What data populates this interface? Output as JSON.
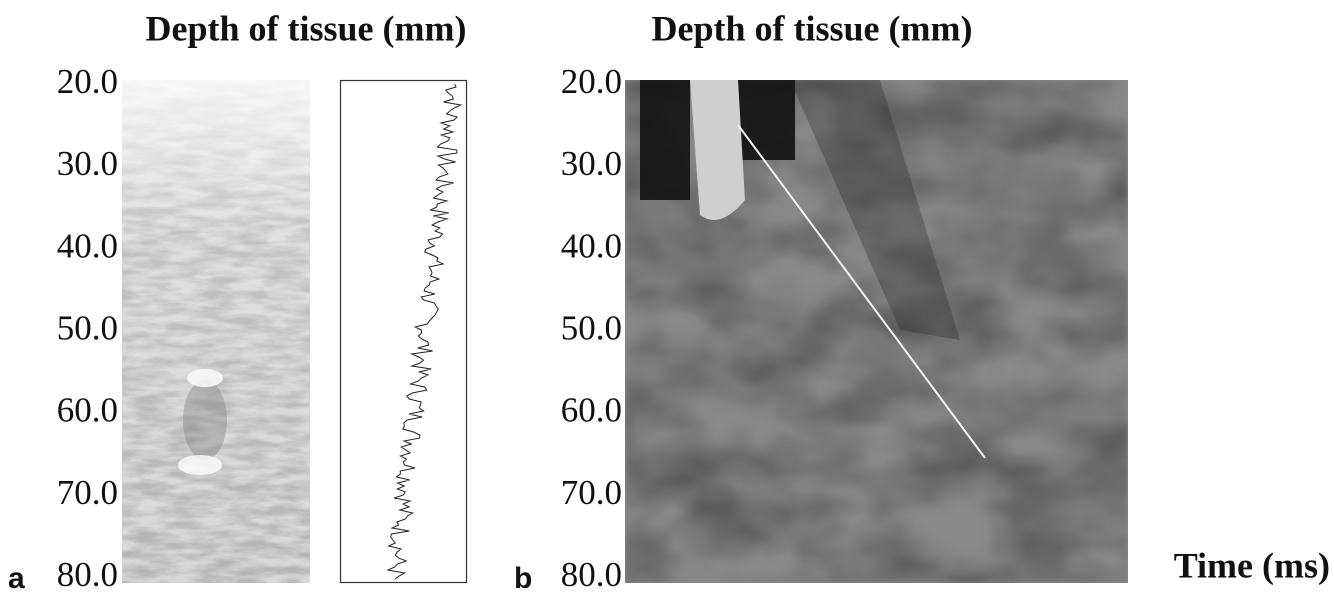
{
  "panels": [
    {
      "label": "a",
      "title": "Depth of tissue (mm)",
      "ylim": [
        20,
        80
      ],
      "yticks": [
        {
          "value": 20,
          "label": "20.0"
        },
        {
          "value": 30,
          "label": "30.0"
        },
        {
          "value": 40,
          "label": "40.0"
        },
        {
          "value": 50,
          "label": "50.0"
        },
        {
          "value": 60,
          "label": "60.0"
        },
        {
          "value": 70,
          "label": "70.0"
        },
        {
          "value": 80,
          "label": "80.0"
        }
      ]
    },
    {
      "label": "b",
      "title": "Depth of tissue (mm)",
      "x_label": "Time (ms)",
      "ylim": [
        20,
        80
      ],
      "yticks": [
        {
          "value": 20,
          "label": "20.0"
        },
        {
          "value": 30,
          "label": "30.0"
        },
        {
          "value": 40,
          "label": "40.0"
        },
        {
          "value": 50,
          "label": "50.0"
        },
        {
          "value": 60,
          "label": "60.0"
        },
        {
          "value": 70,
          "label": "70.0"
        },
        {
          "value": 80,
          "label": "80.0"
        }
      ]
    }
  ]
}
